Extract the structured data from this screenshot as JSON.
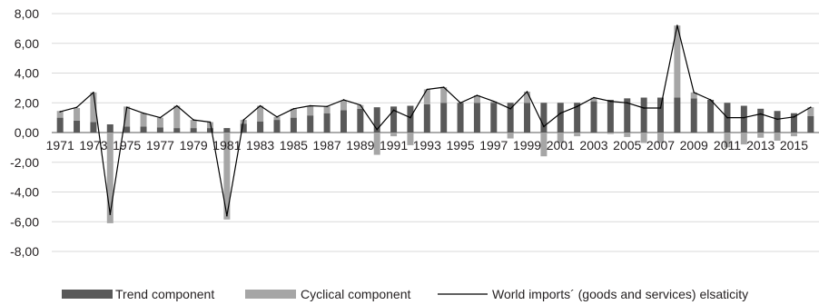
{
  "chart_data": {
    "type": "bar",
    "stacked": true,
    "title": "",
    "xlabel": "",
    "ylabel": "",
    "ylim": [
      -8,
      8
    ],
    "yticks": [
      "8,00",
      "6,00",
      "4,00",
      "2,00",
      "0,00",
      "-2,00",
      "-4,00",
      "-6,00",
      "-8,00"
    ],
    "ytick_values": [
      8,
      6,
      4,
      2,
      0,
      -2,
      -4,
      -6,
      -8
    ],
    "grid": true,
    "legend_position": "bottom",
    "categories": [
      "1971",
      "1972",
      "1973",
      "1974",
      "1975",
      "1976",
      "1977",
      "1978",
      "1979",
      "1980",
      "1981",
      "1982",
      "1983",
      "1984",
      "1985",
      "1986",
      "1987",
      "1988",
      "1989",
      "1990",
      "1991",
      "1992",
      "1993",
      "1994",
      "1995",
      "1996",
      "1997",
      "1998",
      "1999",
      "2000",
      "2001",
      "2002",
      "2003",
      "2004",
      "2005",
      "2006",
      "2007",
      "2008",
      "2009",
      "2010",
      "2011",
      "2012",
      "2013",
      "2014",
      "2015",
      "2016"
    ],
    "xtick_labels": [
      "1971",
      "1973",
      "1975",
      "1977",
      "1979",
      "1981",
      "1983",
      "1985",
      "1987",
      "1989",
      "1991",
      "1993",
      "1995",
      "1997",
      "1999",
      "2001",
      "2003",
      "2005",
      "2007",
      "2009",
      "2011",
      "2013",
      "2015"
    ],
    "series": [
      {
        "name": "Trend component",
        "kind": "bar",
        "color": "#595959",
        "values": [
          1.0,
          0.8,
          0.7,
          0.55,
          0.4,
          0.4,
          0.35,
          0.3,
          0.3,
          0.3,
          0.3,
          0.6,
          0.75,
          0.85,
          1.0,
          1.15,
          1.3,
          1.5,
          1.6,
          1.7,
          1.75,
          1.8,
          1.9,
          2.0,
          2.0,
          2.0,
          2.0,
          2.0,
          2.0,
          2.0,
          2.0,
          2.0,
          2.1,
          2.2,
          2.3,
          2.35,
          2.35,
          2.35,
          2.3,
          2.2,
          2.0,
          1.8,
          1.6,
          1.45,
          1.3,
          1.1
        ]
      },
      {
        "name": "Cyclical component",
        "kind": "bar",
        "color": "#a6a6a6",
        "values": [
          0.45,
          0.85,
          2.0,
          -6.1,
          1.35,
          0.9,
          0.65,
          1.5,
          0.55,
          0.4,
          -5.85,
          0.25,
          1.05,
          0.2,
          0.6,
          0.65,
          0.45,
          0.65,
          0.25,
          -1.5,
          -0.25,
          -0.85,
          1.0,
          1.05,
          0.0,
          0.5,
          0.1,
          -0.4,
          0.75,
          -1.6,
          -0.7,
          -0.25,
          0.25,
          -0.1,
          -0.3,
          -0.7,
          -0.7,
          4.85,
          0.4,
          0.0,
          -1.0,
          -0.8,
          -0.35,
          -0.55,
          -0.25,
          0.6
        ]
      },
      {
        "name": "World imports´ (goods and services)  elsaticity",
        "kind": "line",
        "color": "#000000",
        "values": [
          1.4,
          1.7,
          2.7,
          -5.5,
          1.7,
          1.3,
          1.0,
          1.8,
          0.85,
          0.7,
          -5.6,
          0.85,
          1.8,
          1.05,
          1.6,
          1.8,
          1.75,
          2.2,
          1.85,
          0.2,
          1.5,
          1.0,
          2.9,
          3.05,
          2.0,
          2.5,
          2.1,
          1.6,
          2.75,
          0.4,
          1.3,
          1.75,
          2.35,
          2.1,
          2.0,
          1.65,
          1.65,
          7.2,
          2.7,
          2.2,
          1.0,
          1.0,
          1.25,
          0.9,
          1.05,
          1.7
        ]
      }
    ]
  }
}
